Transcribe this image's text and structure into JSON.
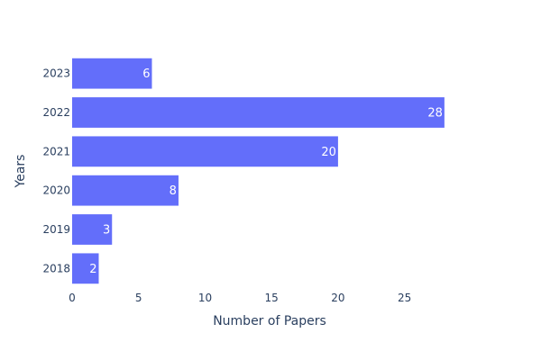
{
  "chart_data": {
    "type": "bar",
    "orientation": "horizontal",
    "categories": [
      "2018",
      "2019",
      "2020",
      "2021",
      "2022",
      "2023"
    ],
    "values": [
      2,
      3,
      8,
      20,
      28,
      6
    ],
    "data_labels": [
      "2",
      "3",
      "8",
      "20",
      "28",
      "6"
    ],
    "title": "",
    "xlabel": "Number of Papers",
    "ylabel": "Years",
    "xlim": [
      0,
      29.5
    ],
    "xticks": [
      0,
      5,
      10,
      15,
      20,
      25
    ],
    "grid": false,
    "bar_color": "#636efa",
    "label_color": "#ffffff",
    "text_color": "#2a3f5f"
  }
}
